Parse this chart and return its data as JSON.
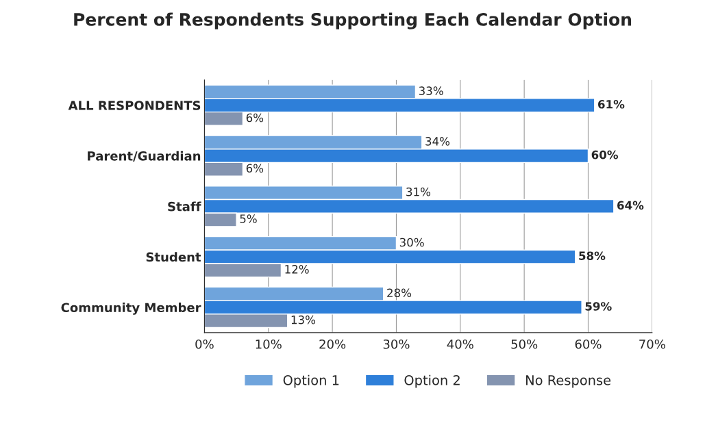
{
  "chart_data": {
    "type": "bar",
    "orientation": "horizontal",
    "title": "Percent of Respondents Supporting Each Calendar Option",
    "categories": [
      "ALL RESPONDENTS",
      "Parent/Guardian",
      "Staff",
      "Student",
      "Community Member"
    ],
    "series": [
      {
        "name": "Option 1",
        "color": "#6fa4dc",
        "values": [
          33,
          34,
          31,
          30,
          28
        ],
        "value_labels": [
          "33%",
          "34%",
          "31%",
          "30%",
          "28%"
        ]
      },
      {
        "name": "Option 2",
        "color": "#2e7fd9",
        "values": [
          61,
          60,
          64,
          58,
          59
        ],
        "value_labels": [
          "61%",
          "60%",
          "64%",
          "58%",
          "59%"
        ]
      },
      {
        "name": "No Response",
        "color": "#8494b0",
        "values": [
          6,
          6,
          5,
          12,
          13
        ],
        "value_labels": [
          "6%",
          "6%",
          "5%",
          "12%",
          "13%"
        ]
      }
    ],
    "xlim": [
      0,
      70
    ],
    "xticks": [
      {
        "value": 0,
        "label": "0%"
      },
      {
        "value": 10,
        "label": "10%"
      },
      {
        "value": 20,
        "label": "20%"
      },
      {
        "value": 30,
        "label": "30%"
      },
      {
        "value": 40,
        "label": "40%"
      },
      {
        "value": 50,
        "label": "50%"
      },
      {
        "value": 60,
        "label": "60%"
      },
      {
        "value": 70,
        "label": "70%"
      }
    ],
    "grid": "x",
    "legend": "bottom"
  }
}
